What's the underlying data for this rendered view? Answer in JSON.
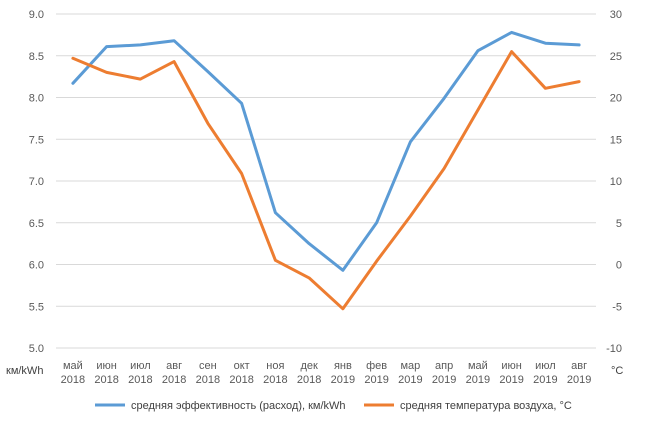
{
  "chart_data": {
    "type": "line",
    "categories": [
      [
        "май",
        "2018"
      ],
      [
        "июн",
        "2018"
      ],
      [
        "июл",
        "2018"
      ],
      [
        "авг",
        "2018"
      ],
      [
        "сен",
        "2018"
      ],
      [
        "окт",
        "2018"
      ],
      [
        "ноя",
        "2018"
      ],
      [
        "дек",
        "2018"
      ],
      [
        "янв",
        "2019"
      ],
      [
        "фев",
        "2019"
      ],
      [
        "мар",
        "2019"
      ],
      [
        "апр",
        "2019"
      ],
      [
        "май",
        "2019"
      ],
      [
        "июн",
        "2019"
      ],
      [
        "июл",
        "2019"
      ],
      [
        "авг",
        "2019"
      ]
    ],
    "series": [
      {
        "name": "средняя эффективность (расход), км/kWh",
        "axis": "left",
        "color": "#5b9bd5",
        "values": [
          8.17,
          8.61,
          8.63,
          8.68,
          8.31,
          7.93,
          6.62,
          6.25,
          5.93,
          6.5,
          7.47,
          7.99,
          8.56,
          8.78,
          8.65,
          8.63
        ]
      },
      {
        "name": "средняя температура воздуха, °C",
        "axis": "right",
        "color": "#ed7d31",
        "values": [
          24.7,
          23.0,
          22.2,
          24.3,
          16.9,
          10.9,
          0.5,
          -1.6,
          -5.3,
          0.4,
          5.8,
          11.5,
          18.5,
          25.5,
          21.1,
          21.9
        ]
      }
    ],
    "y_left": {
      "unit_label": "км/kWh",
      "ticks": [
        "5.0",
        "5.5",
        "6.0",
        "6.5",
        "7.0",
        "7.5",
        "8.0",
        "8.5",
        "9.0"
      ],
      "range": [
        5.0,
        9.0
      ]
    },
    "y_right": {
      "unit_label": "°C",
      "ticks": [
        "-10",
        "-5",
        "0",
        "5",
        "10",
        "15",
        "20",
        "25",
        "30"
      ],
      "range": [
        -10,
        30
      ]
    },
    "grid": true,
    "legend_position": "bottom"
  }
}
